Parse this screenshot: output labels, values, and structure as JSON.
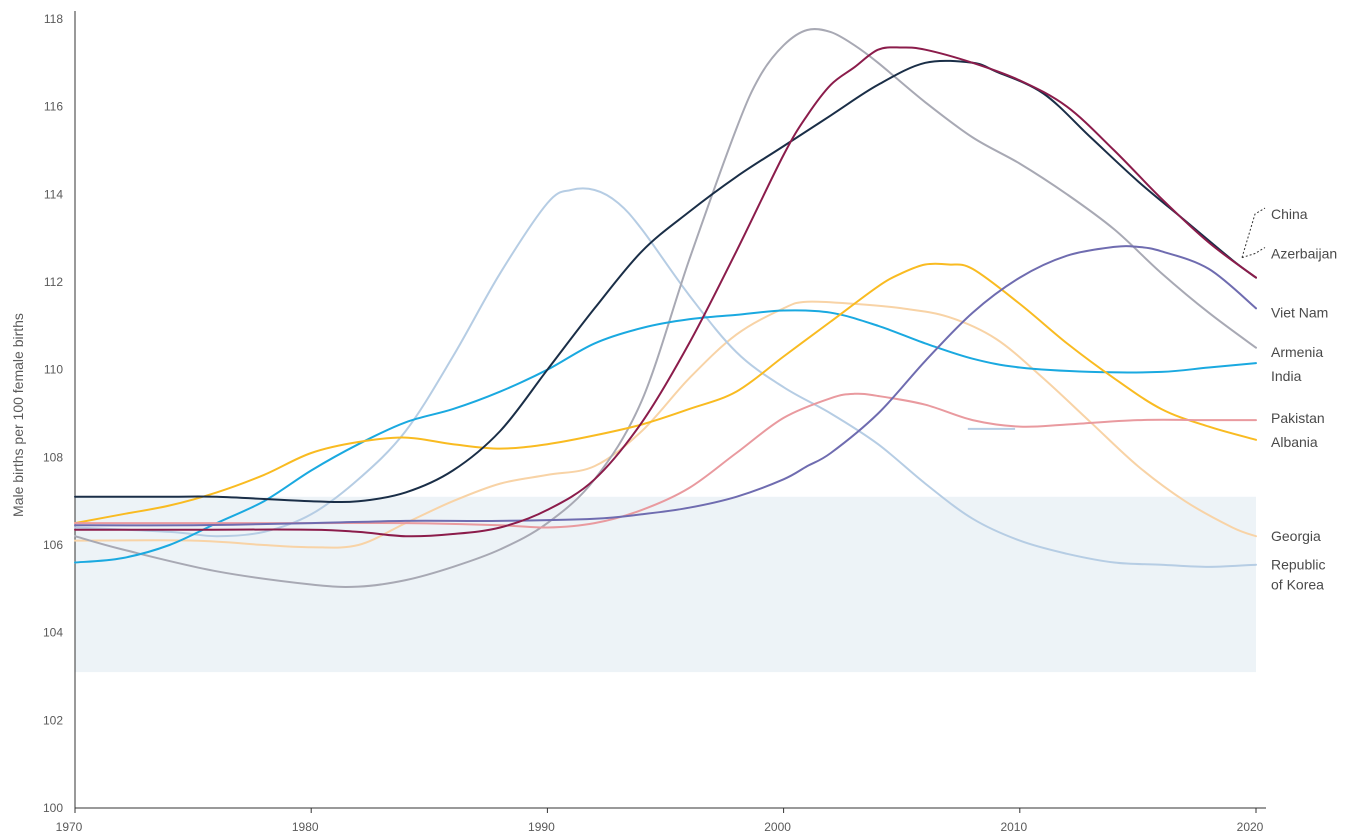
{
  "chart_data": {
    "type": "line",
    "title": "",
    "xlabel": "",
    "ylabel": "Male births per 100 female births",
    "xlim": [
      1970,
      2020
    ],
    "ylim": [
      100,
      118
    ],
    "x_ticks": [
      "1970",
      "1980",
      "1990",
      "2000",
      "2010",
      "2020"
    ],
    "y_ticks": [
      "100",
      "102",
      "104",
      "106",
      "108",
      "110",
      "112",
      "114",
      "116",
      "118"
    ],
    "grid": false,
    "legend": "direct labels at right end of lines",
    "normal_range_band": {
      "y0": 103.1,
      "y1": 107.1,
      "color": "#edf3f7"
    },
    "series": [
      {
        "name": "Georgia",
        "label": "Georgia",
        "color": "#f8d3a6",
        "points": [
          [
            1970,
            106.1
          ],
          [
            1975,
            106.1
          ],
          [
            1978,
            106.0
          ],
          [
            1980,
            105.95
          ],
          [
            1982,
            106.0
          ],
          [
            1984,
            106.5
          ],
          [
            1986,
            107.0
          ],
          [
            1988,
            107.4
          ],
          [
            1990,
            107.6
          ],
          [
            1992,
            107.8
          ],
          [
            1994,
            108.6
          ],
          [
            1996,
            109.8
          ],
          [
            1998,
            110.8
          ],
          [
            2000,
            111.4
          ],
          [
            2001,
            111.55
          ],
          [
            2003,
            111.5
          ],
          [
            2005,
            111.4
          ],
          [
            2007,
            111.2
          ],
          [
            2009,
            110.7
          ],
          [
            2011,
            109.8
          ],
          [
            2013,
            108.8
          ],
          [
            2015,
            107.8
          ],
          [
            2017,
            107.0
          ],
          [
            2019,
            106.4
          ],
          [
            2020,
            106.2
          ]
        ]
      },
      {
        "name": "Republic of Korea",
        "label": "Republic\nof Korea",
        "color": "#b6cde4",
        "points": [
          [
            1970,
            106.4
          ],
          [
            1974,
            106.3
          ],
          [
            1976,
            106.2
          ],
          [
            1978,
            106.3
          ],
          [
            1980,
            106.7
          ],
          [
            1982,
            107.5
          ],
          [
            1984,
            108.6
          ],
          [
            1986,
            110.3
          ],
          [
            1988,
            112.2
          ],
          [
            1990,
            113.8
          ],
          [
            1991,
            114.1
          ],
          [
            1992,
            114.1
          ],
          [
            1993,
            113.8
          ],
          [
            1994,
            113.2
          ],
          [
            1996,
            111.7
          ],
          [
            1998,
            110.4
          ],
          [
            2000,
            109.6
          ],
          [
            2002,
            109.0
          ],
          [
            2004,
            108.3
          ],
          [
            2006,
            107.4
          ],
          [
            2008,
            106.6
          ],
          [
            2010,
            106.1
          ],
          [
            2012,
            105.8
          ],
          [
            2014,
            105.6
          ],
          [
            2016,
            105.55
          ],
          [
            2018,
            105.5
          ],
          [
            2020,
            105.55
          ]
        ]
      },
      {
        "name": "Armenia",
        "label": "Armenia",
        "color": "#a8a9b4",
        "points": [
          [
            1970,
            106.2
          ],
          [
            1972,
            105.9
          ],
          [
            1976,
            105.4
          ],
          [
            1980,
            105.1
          ],
          [
            1982,
            105.05
          ],
          [
            1984,
            105.2
          ],
          [
            1986,
            105.5
          ],
          [
            1988,
            105.9
          ],
          [
            1990,
            106.5
          ],
          [
            1992,
            107.5
          ],
          [
            1994,
            109.3
          ],
          [
            1996,
            112.5
          ],
          [
            1998,
            115.5
          ],
          [
            1999,
            116.7
          ],
          [
            2000,
            117.4
          ],
          [
            2001,
            117.75
          ],
          [
            2002,
            117.7
          ],
          [
            2003,
            117.4
          ],
          [
            2004,
            117.0
          ],
          [
            2006,
            116.1
          ],
          [
            2008,
            115.3
          ],
          [
            2010,
            114.7
          ],
          [
            2012,
            114.0
          ],
          [
            2014,
            113.2
          ],
          [
            2016,
            112.2
          ],
          [
            2018,
            111.3
          ],
          [
            2020,
            110.5
          ]
        ]
      },
      {
        "name": "India",
        "label": "India",
        "color": "#1aa9e0",
        "points": [
          [
            1970,
            105.6
          ],
          [
            1972,
            105.7
          ],
          [
            1974,
            106.0
          ],
          [
            1976,
            106.5
          ],
          [
            1978,
            107.0
          ],
          [
            1980,
            107.7
          ],
          [
            1982,
            108.3
          ],
          [
            1984,
            108.8
          ],
          [
            1986,
            109.1
          ],
          [
            1988,
            109.5
          ],
          [
            1990,
            110.0
          ],
          [
            1992,
            110.6
          ],
          [
            1994,
            110.95
          ],
          [
            1996,
            111.15
          ],
          [
            1998,
            111.25
          ],
          [
            2000,
            111.35
          ],
          [
            2002,
            111.3
          ],
          [
            2004,
            111.0
          ],
          [
            2006,
            110.6
          ],
          [
            2008,
            110.25
          ],
          [
            2010,
            110.05
          ],
          [
            2013,
            109.95
          ],
          [
            2016,
            109.95
          ],
          [
            2018,
            110.05
          ],
          [
            2020,
            110.15
          ]
        ]
      },
      {
        "name": "Albania",
        "label": "Albania",
        "color": "#f9bb21",
        "points": [
          [
            1970,
            106.5
          ],
          [
            1972,
            106.7
          ],
          [
            1974,
            106.9
          ],
          [
            1976,
            107.2
          ],
          [
            1978,
            107.6
          ],
          [
            1980,
            108.1
          ],
          [
            1982,
            108.35
          ],
          [
            1984,
            108.45
          ],
          [
            1986,
            108.3
          ],
          [
            1988,
            108.2
          ],
          [
            1990,
            108.3
          ],
          [
            1992,
            108.5
          ],
          [
            1994,
            108.75
          ],
          [
            1996,
            109.1
          ],
          [
            1998,
            109.5
          ],
          [
            2000,
            110.3
          ],
          [
            2002,
            111.1
          ],
          [
            2004,
            111.9
          ],
          [
            2005,
            112.2
          ],
          [
            2006,
            112.4
          ],
          [
            2007,
            112.4
          ],
          [
            2008,
            112.3
          ],
          [
            2010,
            111.5
          ],
          [
            2012,
            110.6
          ],
          [
            2014,
            109.8
          ],
          [
            2016,
            109.1
          ],
          [
            2018,
            108.7
          ],
          [
            2020,
            108.4
          ]
        ]
      },
      {
        "name": "Pakistan",
        "label": "Pakistan",
        "color": "#e99a9f",
        "points": [
          [
            1970,
            106.5
          ],
          [
            1976,
            106.5
          ],
          [
            1980,
            106.5
          ],
          [
            1984,
            106.5
          ],
          [
            1988,
            106.45
          ],
          [
            1990,
            106.4
          ],
          [
            1992,
            106.5
          ],
          [
            1994,
            106.8
          ],
          [
            1996,
            107.3
          ],
          [
            1998,
            108.1
          ],
          [
            2000,
            108.9
          ],
          [
            2002,
            109.35
          ],
          [
            2003,
            109.45
          ],
          [
            2004,
            109.4
          ],
          [
            2006,
            109.2
          ],
          [
            2008,
            108.85
          ],
          [
            2010,
            108.7
          ],
          [
            2012,
            108.75
          ],
          [
            2015,
            108.85
          ],
          [
            2018,
            108.85
          ],
          [
            2020,
            108.85
          ]
        ]
      },
      {
        "name": "Viet Nam",
        "label": "Viet Nam",
        "color": "#6f6cb0",
        "points": [
          [
            1970,
            106.45
          ],
          [
            1975,
            106.45
          ],
          [
            1980,
            106.5
          ],
          [
            1984,
            106.55
          ],
          [
            1988,
            106.55
          ],
          [
            1992,
            106.6
          ],
          [
            1994,
            106.7
          ],
          [
            1996,
            106.85
          ],
          [
            1998,
            107.1
          ],
          [
            2000,
            107.5
          ],
          [
            2001,
            107.8
          ],
          [
            2002,
            108.1
          ],
          [
            2004,
            109.0
          ],
          [
            2006,
            110.2
          ],
          [
            2008,
            111.3
          ],
          [
            2010,
            112.1
          ],
          [
            2012,
            112.6
          ],
          [
            2014,
            112.8
          ],
          [
            2015,
            112.8
          ],
          [
            2016,
            112.7
          ],
          [
            2018,
            112.3
          ],
          [
            2020,
            111.4
          ]
        ]
      },
      {
        "name": "China",
        "label": "China",
        "color": "#1a2e47",
        "points": [
          [
            1970,
            107.1
          ],
          [
            1974,
            107.1
          ],
          [
            1976,
            107.1
          ],
          [
            1980,
            107.0
          ],
          [
            1982,
            107.0
          ],
          [
            1984,
            107.2
          ],
          [
            1986,
            107.7
          ],
          [
            1988,
            108.6
          ],
          [
            1990,
            110.0
          ],
          [
            1992,
            111.4
          ],
          [
            1994,
            112.7
          ],
          [
            1996,
            113.6
          ],
          [
            1998,
            114.4
          ],
          [
            2000,
            115.1
          ],
          [
            2002,
            115.8
          ],
          [
            2004,
            116.5
          ],
          [
            2006,
            117.0
          ],
          [
            2008,
            117.0
          ],
          [
            2009,
            116.8
          ],
          [
            2011,
            116.3
          ],
          [
            2013,
            115.3
          ],
          [
            2015,
            114.3
          ],
          [
            2017,
            113.4
          ],
          [
            2019,
            112.5
          ],
          [
            2020,
            112.1
          ]
        ]
      },
      {
        "name": "Azerbaijan",
        "label": "Azerbaijan",
        "color": "#8b1c4b",
        "points": [
          [
            1970,
            106.35
          ],
          [
            1975,
            106.35
          ],
          [
            1980,
            106.35
          ],
          [
            1982,
            106.3
          ],
          [
            1984,
            106.2
          ],
          [
            1986,
            106.25
          ],
          [
            1988,
            106.4
          ],
          [
            1990,
            106.8
          ],
          [
            1992,
            107.5
          ],
          [
            1994,
            108.8
          ],
          [
            1996,
            110.6
          ],
          [
            1998,
            112.7
          ],
          [
            2000,
            114.9
          ],
          [
            2001,
            115.8
          ],
          [
            2002,
            116.5
          ],
          [
            2003,
            116.9
          ],
          [
            2004,
            117.3
          ],
          [
            2005,
            117.35
          ],
          [
            2006,
            117.3
          ],
          [
            2008,
            117.0
          ],
          [
            2010,
            116.6
          ],
          [
            2012,
            116.0
          ],
          [
            2014,
            115.0
          ],
          [
            2016,
            113.9
          ],
          [
            2018,
            112.9
          ],
          [
            2020,
            112.1
          ]
        ]
      }
    ],
    "label_positions": {
      "China": 113.55,
      "Azerbaijan": 112.65,
      "Viet Nam": 111.3,
      "Armenia": 110.4,
      "India": 109.85,
      "Pakistan": 108.9,
      "Albania": 108.35,
      "Georgia": 106.2,
      "Republic of Korea": 105.55
    },
    "extra_mark": {
      "color": "#b6cde4",
      "x0": 2007.8,
      "x1": 2009.8,
      "y": 108.65
    }
  }
}
